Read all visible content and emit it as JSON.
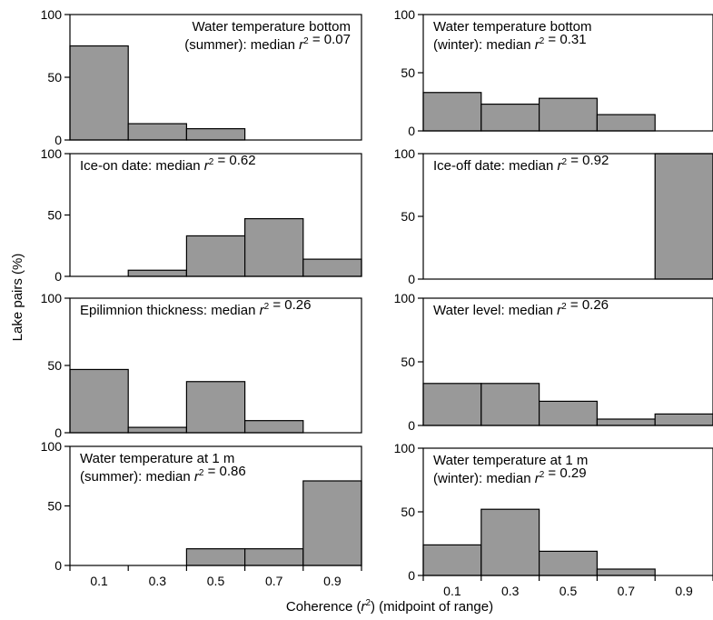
{
  "figure": {
    "ylabel": "Lake pairs (%)",
    "xlabel_pre": "Coherence (",
    "xlabel_var": "r",
    "xlabel_sup": "2",
    "xlabel_post": ") (midpoint of range)"
  },
  "colors": {
    "bar_fill": "#999999",
    "bar_stroke": "#000000",
    "frame": "#000000"
  },
  "chart_data": [
    {
      "type": "bar",
      "categories": [
        "0.1",
        "0.3",
        "0.5",
        "0.7",
        "0.9"
      ],
      "values": [
        75,
        13,
        9,
        0,
        0
      ],
      "ylim": [
        0,
        100
      ],
      "yticks": [
        0,
        50,
        100
      ],
      "label_lines": [
        {
          "parts": [
            {
              "t": "Water temperature bottom"
            }
          ]
        },
        {
          "parts": [
            {
              "t": "(summer): median "
            },
            {
              "t": "r",
              "i": true
            },
            {
              "t": "2",
              "sup": true
            },
            {
              "t": " = 0.07"
            }
          ]
        }
      ],
      "label_align": "right",
      "show_x_ticks": false
    },
    {
      "type": "bar",
      "categories": [
        "0.1",
        "0.3",
        "0.5",
        "0.7",
        "0.9"
      ],
      "values": [
        33,
        23,
        28,
        14,
        0
      ],
      "ylim": [
        0,
        100
      ],
      "yticks": [
        0,
        50,
        100
      ],
      "label_lines": [
        {
          "parts": [
            {
              "t": "Water temperature bottom"
            }
          ]
        },
        {
          "parts": [
            {
              "t": "(winter): median "
            },
            {
              "t": "r",
              "i": true
            },
            {
              "t": "2",
              "sup": true
            },
            {
              "t": " = 0.31"
            }
          ]
        }
      ],
      "label_align": "left",
      "show_x_ticks": false
    },
    {
      "type": "bar",
      "categories": [
        "0.1",
        "0.3",
        "0.5",
        "0.7",
        "0.9"
      ],
      "values": [
        0,
        5,
        33,
        47,
        14
      ],
      "ylim": [
        0,
        100
      ],
      "yticks": [
        0,
        50,
        100
      ],
      "label_lines": [
        {
          "parts": [
            {
              "t": "Ice-on date: median "
            },
            {
              "t": "r",
              "i": true
            },
            {
              "t": "2",
              "sup": true
            },
            {
              "t": "  = 0.62"
            }
          ]
        }
      ],
      "label_align": "left",
      "show_x_ticks": false
    },
    {
      "type": "bar",
      "categories": [
        "0.1",
        "0.3",
        "0.5",
        "0.7",
        "0.9"
      ],
      "values": [
        0,
        0,
        0,
        0,
        100
      ],
      "ylim": [
        0,
        100
      ],
      "yticks": [
        0,
        50,
        100
      ],
      "label_lines": [
        {
          "parts": [
            {
              "t": "Ice-off date: median "
            },
            {
              "t": "r",
              "i": true
            },
            {
              "t": "2",
              "sup": true
            },
            {
              "t": " = 0.92"
            }
          ]
        }
      ],
      "label_align": "left",
      "show_x_ticks": false
    },
    {
      "type": "bar",
      "categories": [
        "0.1",
        "0.3",
        "0.5",
        "0.7",
        "0.9"
      ],
      "values": [
        47,
        4,
        38,
        9,
        0
      ],
      "ylim": [
        0,
        100
      ],
      "yticks": [
        0,
        50,
        100
      ],
      "label_lines": [
        {
          "parts": [
            {
              "t": "Epilimnion thickness: median "
            },
            {
              "t": "r",
              "i": true
            },
            {
              "t": "2",
              "sup": true
            },
            {
              "t": " = 0.26"
            }
          ]
        }
      ],
      "label_align": "left",
      "show_x_ticks": false
    },
    {
      "type": "bar",
      "categories": [
        "0.1",
        "0.3",
        "0.5",
        "0.7",
        "0.9"
      ],
      "values": [
        33,
        33,
        19,
        5,
        9
      ],
      "ylim": [
        0,
        100
      ],
      "yticks": [
        0,
        50,
        100
      ],
      "label_lines": [
        {
          "parts": [
            {
              "t": "Water level: median "
            },
            {
              "t": "r",
              "i": true
            },
            {
              "t": "2",
              "sup": true
            },
            {
              "t": " = 0.26"
            }
          ]
        }
      ],
      "label_align": "left",
      "show_x_ticks": false
    },
    {
      "type": "bar",
      "categories": [
        "0.1",
        "0.3",
        "0.5",
        "0.7",
        "0.9"
      ],
      "values": [
        0,
        0,
        14,
        14,
        71
      ],
      "ylim": [
        0,
        100
      ],
      "yticks": [
        0,
        50,
        100
      ],
      "label_lines": [
        {
          "parts": [
            {
              "t": "Water temperature at 1 m"
            }
          ]
        },
        {
          "parts": [
            {
              "t": "(summer): median "
            },
            {
              "t": "r",
              "i": true
            },
            {
              "t": "2",
              "sup": true
            },
            {
              "t": " = 0.86"
            }
          ]
        }
      ],
      "label_align": "left",
      "show_x_ticks": true
    },
    {
      "type": "bar",
      "categories": [
        "0.1",
        "0.3",
        "0.5",
        "0.7",
        "0.9"
      ],
      "values": [
        24,
        52,
        19,
        5,
        0
      ],
      "ylim": [
        0,
        100
      ],
      "yticks": [
        0,
        50,
        100
      ],
      "label_lines": [
        {
          "parts": [
            {
              "t": "Water temperature at 1 m"
            }
          ]
        },
        {
          "parts": [
            {
              "t": "(winter): median "
            },
            {
              "t": "r",
              "i": true
            },
            {
              "t": "2",
              "sup": true
            },
            {
              "t": " = 0.29"
            }
          ]
        }
      ],
      "label_align": "left",
      "show_x_ticks": true
    }
  ]
}
